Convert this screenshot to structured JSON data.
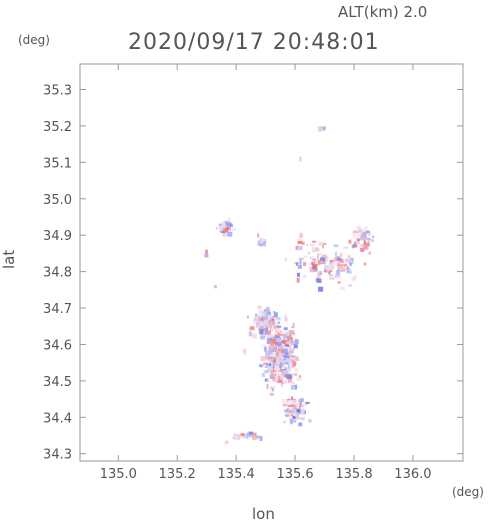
{
  "header": {
    "alt_label": "ALT(km)  2.0",
    "timestamp": "2020/09/17 20:48:01",
    "y_unit": "(deg)",
    "x_unit": "(deg)"
  },
  "chart_data": {
    "type": "scatter",
    "xlabel": "lon",
    "ylabel": "lat",
    "xlim": [
      134.87,
      136.17
    ],
    "ylim": [
      34.28,
      35.37
    ],
    "xticks": [
      "135.0",
      "135.2",
      "135.4",
      "135.6",
      "135.8",
      "136.0"
    ],
    "yticks": [
      "34.3",
      "34.4",
      "34.5",
      "34.6",
      "34.7",
      "34.8",
      "34.9",
      "35.0",
      "35.1",
      "35.2",
      "35.3"
    ],
    "grid": false,
    "colors": {
      "positive": "#e8555a",
      "negative": "#5a64e8",
      "axis": "#9a9a9a"
    },
    "clusters": [
      {
        "lon": 135.55,
        "lat": 34.57,
        "slon": 0.045,
        "slat": 0.07,
        "n": 380
      },
      {
        "lon": 135.5,
        "lat": 34.66,
        "slon": 0.04,
        "slat": 0.03,
        "n": 120
      },
      {
        "lon": 135.6,
        "lat": 34.42,
        "slon": 0.03,
        "slat": 0.03,
        "n": 80
      },
      {
        "lon": 135.7,
        "lat": 34.82,
        "slon": 0.09,
        "slat": 0.05,
        "n": 110
      },
      {
        "lon": 135.83,
        "lat": 34.89,
        "slon": 0.03,
        "slat": 0.03,
        "n": 40
      },
      {
        "lon": 135.36,
        "lat": 34.92,
        "slon": 0.03,
        "slat": 0.02,
        "n": 30
      },
      {
        "lon": 135.44,
        "lat": 34.35,
        "slon": 0.06,
        "slat": 0.006,
        "n": 30
      },
      {
        "lon": 135.48,
        "lat": 34.88,
        "slon": 0.015,
        "slat": 0.015,
        "n": 8
      },
      {
        "lon": 135.62,
        "lat": 34.88,
        "slon": 0.015,
        "slat": 0.02,
        "n": 10
      },
      {
        "lon": 135.69,
        "lat": 35.19,
        "slon": 0.005,
        "slat": 0.004,
        "n": 4
      },
      {
        "lon": 135.3,
        "lat": 34.85,
        "slon": 0.005,
        "slat": 0.005,
        "n": 2
      },
      {
        "lon": 135.37,
        "lat": 34.33,
        "slon": 0.006,
        "slat": 0.003,
        "n": 3
      },
      {
        "lon": 135.43,
        "lat": 34.58,
        "slon": 0.004,
        "slat": 0.004,
        "n": 2
      },
      {
        "lon": 135.62,
        "lat": 35.11,
        "slon": 0.003,
        "slat": 0.003,
        "n": 1
      },
      {
        "lon": 135.33,
        "lat": 34.76,
        "slon": 0.004,
        "slat": 0.004,
        "n": 2
      }
    ]
  }
}
